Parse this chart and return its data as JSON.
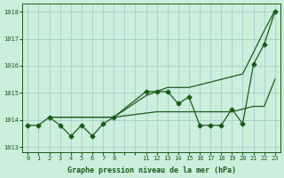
{
  "bg_color": "#cceedd",
  "grid_color": "#aacccc",
  "line_color": "#1a5c1a",
  "title": "Graphe pression niveau de la mer (hPa)",
  "ylim": [
    1012.8,
    1018.3
  ],
  "yticks": [
    1013,
    1014,
    1015,
    1016,
    1017,
    1018
  ],
  "line_zigzag_x": [
    0,
    1,
    2,
    3,
    4,
    5,
    6,
    7,
    8,
    11,
    12,
    13,
    14,
    15,
    16,
    17,
    18,
    19,
    20,
    21,
    22,
    23
  ],
  "line_zigzag_y": [
    1013.8,
    1013.8,
    1014.1,
    1013.8,
    1013.4,
    1013.8,
    1013.4,
    1013.85,
    1014.1,
    1015.05,
    1015.05,
    1015.05,
    1014.6,
    1014.85,
    1013.8,
    1013.8,
    1013.8,
    1014.4,
    1013.85,
    1016.05,
    1016.8,
    1018.0
  ],
  "line_upper_x": [
    2,
    3,
    4,
    5,
    6,
    7,
    8,
    11,
    12,
    13,
    14,
    15,
    16,
    17,
    18,
    19,
    20,
    21,
    22,
    23
  ],
  "line_upper_y": [
    1014.1,
    1014.1,
    1014.1,
    1014.1,
    1014.1,
    1014.1,
    1014.1,
    1014.9,
    1015.05,
    1015.2,
    1015.2,
    1015.2,
    1015.3,
    1015.4,
    1015.5,
    1015.6,
    1015.7,
    1016.5,
    1017.3,
    1018.05
  ],
  "line_lower_x": [
    2,
    3,
    4,
    5,
    6,
    7,
    8,
    11,
    12,
    13,
    14,
    15,
    16,
    17,
    18,
    19,
    20,
    21,
    22,
    23
  ],
  "line_lower_y": [
    1014.1,
    1014.1,
    1014.1,
    1014.1,
    1014.1,
    1014.1,
    1014.1,
    1014.25,
    1014.3,
    1014.3,
    1014.3,
    1014.3,
    1014.3,
    1014.3,
    1014.3,
    1014.3,
    1014.4,
    1014.5,
    1014.5,
    1015.5
  ]
}
